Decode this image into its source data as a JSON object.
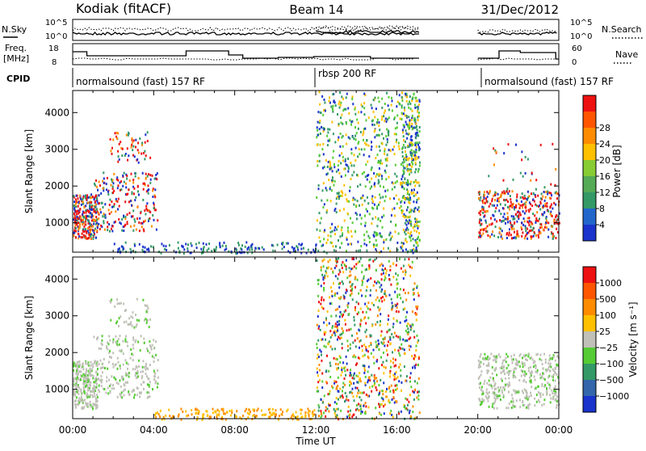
{
  "header": {
    "title_left": "Kodiak (fitACF)",
    "title_center": "Beam 14",
    "title_right": "31/Dec/2012"
  },
  "noise_panel": {
    "left_label": "N.Sky",
    "right_label": "N.Search",
    "left_ticks": [
      "10^5",
      "10^0"
    ],
    "right_ticks": [
      "10^5",
      "10^0"
    ]
  },
  "freq_panel": {
    "left_label_line1": "Freq.",
    "left_label_line2": "[MHz]",
    "left_ticks": [
      "18",
      "8"
    ],
    "right_label": "Nave",
    "right_ticks": [
      "60",
      "0"
    ]
  },
  "cpid": {
    "label": "CPID",
    "segments": [
      {
        "text": "normalsound (fast) 157 RF",
        "start_hour": 0
      },
      {
        "text": "rbsp 200 RF",
        "start_hour": 12
      },
      {
        "text": "normalsound (fast) 157 RF",
        "start_hour": 20
      }
    ]
  },
  "x_axis": {
    "ticks": [
      "00:00",
      "04:00",
      "08:00",
      "12:00",
      "16:00",
      "20:00",
      "00:00"
    ],
    "title": "Time UT"
  },
  "colors": {
    "red": "#ee1111",
    "orange": "#ff8c00",
    "yellow": "#ffc000",
    "green": "#55cc33",
    "teal": "#339966",
    "blue": "#1a33cc",
    "gray": "#c0c0b8"
  },
  "chart_data": [
    {
      "type": "heatmap",
      "name": "power",
      "ylabel": "Slant Range [km]",
      "yticks": [
        "1000",
        "2000",
        "3000",
        "4000"
      ],
      "ylim": [
        200,
        4600
      ],
      "xlim_hours": [
        0,
        24
      ],
      "colorbar": {
        "label": "Power [dB]",
        "ticks": [
          "4",
          "8",
          "12",
          "16",
          "20",
          "24",
          "28"
        ],
        "range": [
          0,
          32
        ],
        "colors": [
          "#1a33cc",
          "#2266cc",
          "#339966",
          "#55aa55",
          "#88cc33",
          "#ffc000",
          "#ff8c00",
          "#ff5500",
          "#ee1111"
        ]
      }
    },
    {
      "type": "heatmap",
      "name": "velocity",
      "ylabel": "Slant Range [km]",
      "yticks": [
        "1000",
        "2000",
        "3000",
        "4000"
      ],
      "ylim": [
        200,
        4600
      ],
      "xlim_hours": [
        0,
        24
      ],
      "colorbar": {
        "label": "Velocity [m s⁻¹]",
        "ticks": [
          "1000",
          "500",
          "100",
          "25",
          "−25",
          "−100",
          "−500",
          "−1000"
        ],
        "colors": [
          "#1a33cc",
          "#3366aa",
          "#339966",
          "#55cc33",
          "#c0c0b8",
          "#ffc000",
          "#ff8c00",
          "#ff5500",
          "#ee1111"
        ]
      }
    }
  ]
}
